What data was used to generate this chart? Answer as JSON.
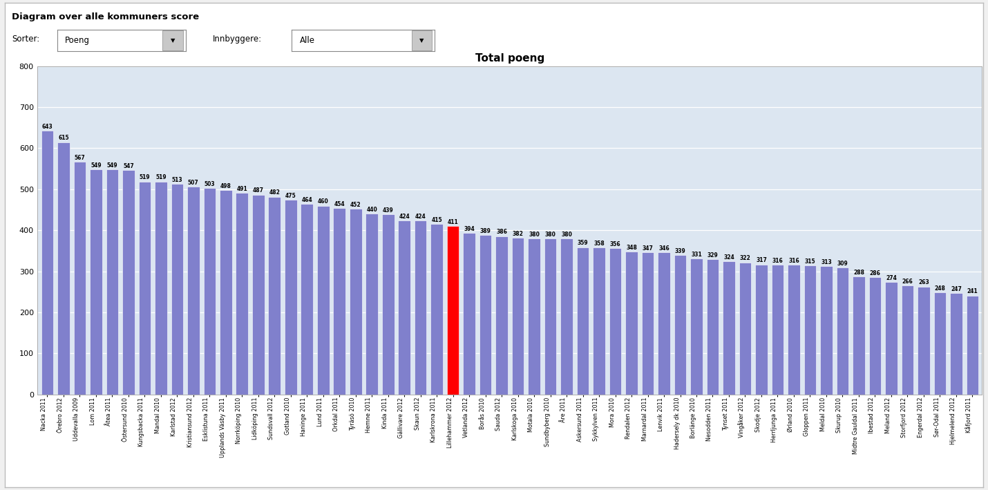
{
  "title": "Total poeng",
  "header_title": "Diagram over alle kommuners score",
  "bar_color": "#8080cc",
  "highlight_color": "#ff0000",
  "highlight_index": 25,
  "background_color": "#ffffff",
  "plot_bg_color": "#dce6f1",
  "outer_bg_color": "#f0f0f0",
  "ylim": [
    0,
    800
  ],
  "yticks": [
    0,
    100,
    200,
    300,
    400,
    500,
    600,
    700,
    800
  ],
  "categories": [
    "Nacka 2011",
    "Örebro 2012",
    "Uddevalla 2009",
    "Lom 2011",
    "Åtea 2011",
    "Östersund 2010",
    "Kungsbacka 2011",
    "Mandal 2010",
    "Karlstad 2012",
    "Kristiansund 2012",
    "Esklistuna 2011",
    "Upplands Väsby 2011",
    "Norrköping 2010",
    "Lidköping 2011",
    "Sundsvall 2012",
    "Gotland 2010",
    "Haninge 2011",
    "Lund 2011",
    "Orkdal 2011",
    "Tyräsö 2010",
    "Hemne 2011",
    "Kinda 2011",
    "Gällivare 2012",
    "Skaun 2012",
    "Karlskrona 2011",
    "Lillehammer 2012",
    "Vetlanda 2012",
    "Borås 2010",
    "Sauda 2012",
    "Karlskoga 2010",
    "Motala 2010",
    "Sundbyberg 2010",
    "Åre 2011",
    "Askersund 2011",
    "Sykkylven 2011",
    "Mora 2010",
    "Rendalen 2012",
    "Marnardal 2011",
    "Lenvik 2011",
    "Hadersely dk 2010",
    "Borlänge 2010",
    "Nesodden 2011",
    "Tynset 2011",
    "Vingåker 2012",
    "Skodje 2012",
    "Herrljunga 2011",
    "Ørland 2010",
    "Gloppen 2011",
    "Meldal 2010",
    "Skurup 2010",
    "Midtre Gauldal 2011",
    "Ibestad 2012",
    "Meland 2012",
    "Storfjord 2012",
    "Engerdal 2012",
    "Sør-Odal 2011",
    "Hjelmelend 2012",
    "Kåfjord 2011"
  ],
  "values": [
    643,
    615,
    567,
    549,
    549,
    547,
    519,
    519,
    513,
    507,
    503,
    498,
    491,
    487,
    482,
    475,
    464,
    460,
    454,
    452,
    440,
    439,
    424,
    424,
    415,
    411,
    394,
    389,
    386,
    382,
    380,
    380,
    380,
    359,
    358,
    356,
    348,
    347,
    346,
    339,
    331,
    329,
    324,
    322,
    317,
    316,
    316,
    315,
    313,
    309,
    288,
    286,
    274,
    266,
    263,
    248,
    247,
    241
  ],
  "value_fontsize": 5.5,
  "title_fontsize": 11,
  "xlabel_fontsize": 5.8,
  "ylabel_fontsize": 8
}
